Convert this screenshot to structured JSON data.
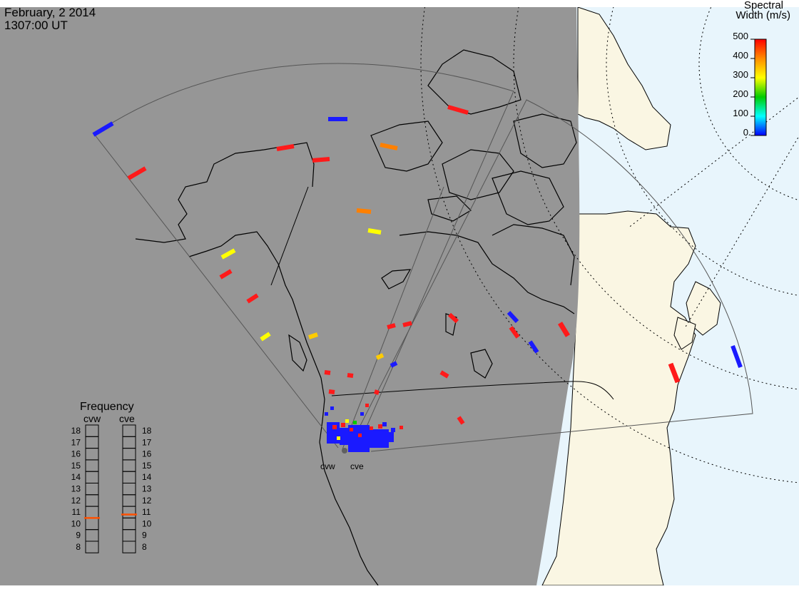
{
  "header": {
    "date": "February, 2 2014",
    "time": "1307:00 UT"
  },
  "colorbar": {
    "title_line1": "Spectral",
    "title_line2": "Width (m/s)",
    "ticks": [
      "500",
      "400",
      "300",
      "200",
      "100",
      "0"
    ],
    "gradient": [
      "#ff0000",
      "#ff8000",
      "#ffff00",
      "#00cc00",
      "#00ffff",
      "#0000ff"
    ]
  },
  "frequency_panel": {
    "title": "Frequency",
    "radars": [
      {
        "name": "cvw",
        "value": 10.5,
        "indicator_color": "#ff5000"
      },
      {
        "name": "cve",
        "value": 10.8,
        "indicator_color": "#ff5000"
      }
    ],
    "scale": [
      "18",
      "17",
      "16",
      "15",
      "14",
      "13",
      "12",
      "11",
      "10",
      "9",
      "8"
    ]
  },
  "stations": [
    {
      "name": "cvw"
    },
    {
      "name": "cve"
    }
  ],
  "colors": {
    "night": "#969696",
    "day_land": "#faf6e3",
    "day_ocean": "#e8f5fc",
    "low_width": "#1a1aff",
    "high_width": "#ff1a1a"
  }
}
